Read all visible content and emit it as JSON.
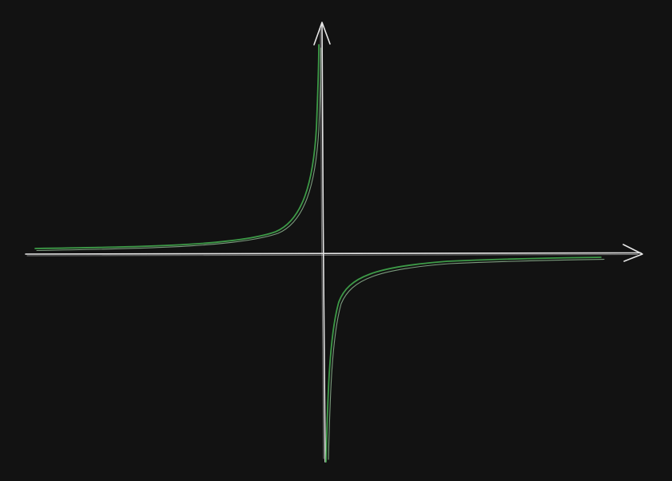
{
  "diagram": {
    "kind": "hand-drawn plot of a reciprocal function",
    "colors": {
      "background": "#121212",
      "axes": "#e6e6e6",
      "curve": "#3d9a47",
      "curve_echo": "#a9d7ad"
    },
    "axes": {
      "x_arrow": "right",
      "y_arrow": "up"
    },
    "branches": [
      {
        "name": "upper-left",
        "quadrant": "II"
      },
      {
        "name": "lower-right",
        "quadrant": "IV"
      }
    ]
  }
}
